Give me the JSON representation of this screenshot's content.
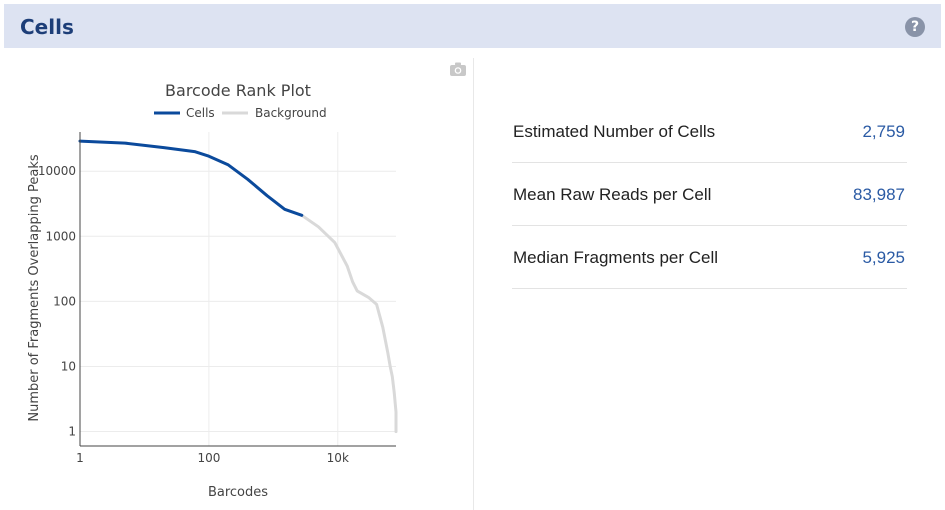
{
  "header": {
    "title": "Cells",
    "help_icon": "question-icon"
  },
  "toolbar": {
    "camera_icon": "camera-icon"
  },
  "colors": {
    "cells": "#0b4a9c",
    "background": "#d9d9d9",
    "header_bg": "#dde3f2",
    "header_text": "#1d3e78",
    "value": "#2a5aa4"
  },
  "chart_data": {
    "type": "line",
    "title": "Barcode Rank Plot",
    "xlabel": "Barcodes",
    "ylabel": "Number of Fragments Overlapping Peaks",
    "xscale": "log",
    "yscale": "log",
    "xlim": [
      1,
      80000
    ],
    "ylim": [
      0.6,
      40000
    ],
    "xticks": [
      {
        "value": 1,
        "label": "1"
      },
      {
        "value": 100,
        "label": "100"
      },
      {
        "value": 10000,
        "label": "10k"
      }
    ],
    "yticks": [
      {
        "value": 1,
        "label": "1"
      },
      {
        "value": 10,
        "label": "10"
      },
      {
        "value": 100,
        "label": "100"
      },
      {
        "value": 1000,
        "label": "1000"
      },
      {
        "value": 10000,
        "label": "10000"
      }
    ],
    "grid": true,
    "legend_position": "top",
    "series": [
      {
        "name": "Cells",
        "points": [
          [
            1,
            29000
          ],
          [
            5,
            27000
          ],
          [
            20,
            23000
          ],
          [
            60,
            20000
          ],
          [
            100,
            17000
          ],
          [
            200,
            12500
          ],
          [
            400,
            7500
          ],
          [
            800,
            4200
          ],
          [
            1500,
            2600
          ],
          [
            2759,
            2100
          ]
        ]
      },
      {
        "name": "Background",
        "points": [
          [
            2759,
            2100
          ],
          [
            5000,
            1400
          ],
          [
            9000,
            800
          ],
          [
            14000,
            350
          ],
          [
            17000,
            200
          ],
          [
            20000,
            145
          ],
          [
            30000,
            115
          ],
          [
            40000,
            90
          ],
          [
            50000,
            40
          ],
          [
            60000,
            16
          ],
          [
            65000,
            10
          ],
          [
            70000,
            7
          ],
          [
            75000,
            4
          ],
          [
            80000,
            2
          ],
          [
            85000,
            1
          ]
        ]
      }
    ]
  },
  "metrics": [
    {
      "label": "Estimated Number of Cells",
      "value": "2,759"
    },
    {
      "label": "Mean Raw Reads per Cell",
      "value": "83,987"
    },
    {
      "label": "Median Fragments per Cell",
      "value": "5,925"
    }
  ]
}
